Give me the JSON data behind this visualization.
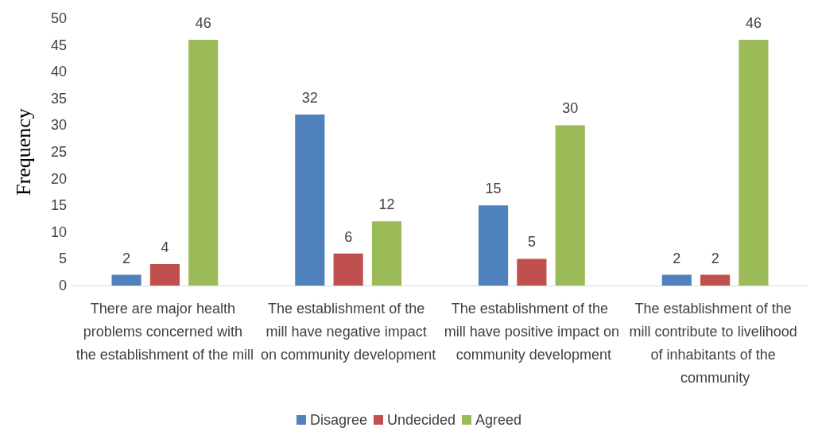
{
  "chart_data": {
    "type": "bar",
    "ylabel": "Frequency",
    "categories": [
      "There are major health problems concerned with the establishment of the mill",
      "The establishment of the mill have negative impact on community development",
      "The establishment of the mill have positive impact on community development",
      "The establishment of the mill contribute to livelihood of inhabitants of the community"
    ],
    "series": [
      {
        "name": "Disagree",
        "color": "#4f81bd",
        "values": [
          2,
          32,
          15,
          2
        ]
      },
      {
        "name": "Undecided",
        "color": "#c0504d",
        "values": [
          4,
          6,
          5,
          2
        ]
      },
      {
        "name": "Agreed",
        "color": "#9bbb59",
        "values": [
          46,
          12,
          30,
          46
        ]
      }
    ],
    "ylim": [
      0,
      50
    ],
    "yticks": [
      0,
      5,
      10,
      15,
      20,
      25,
      30,
      35,
      40,
      45,
      50
    ],
    "grid": false,
    "legend": "bottom",
    "data_labels": true
  }
}
